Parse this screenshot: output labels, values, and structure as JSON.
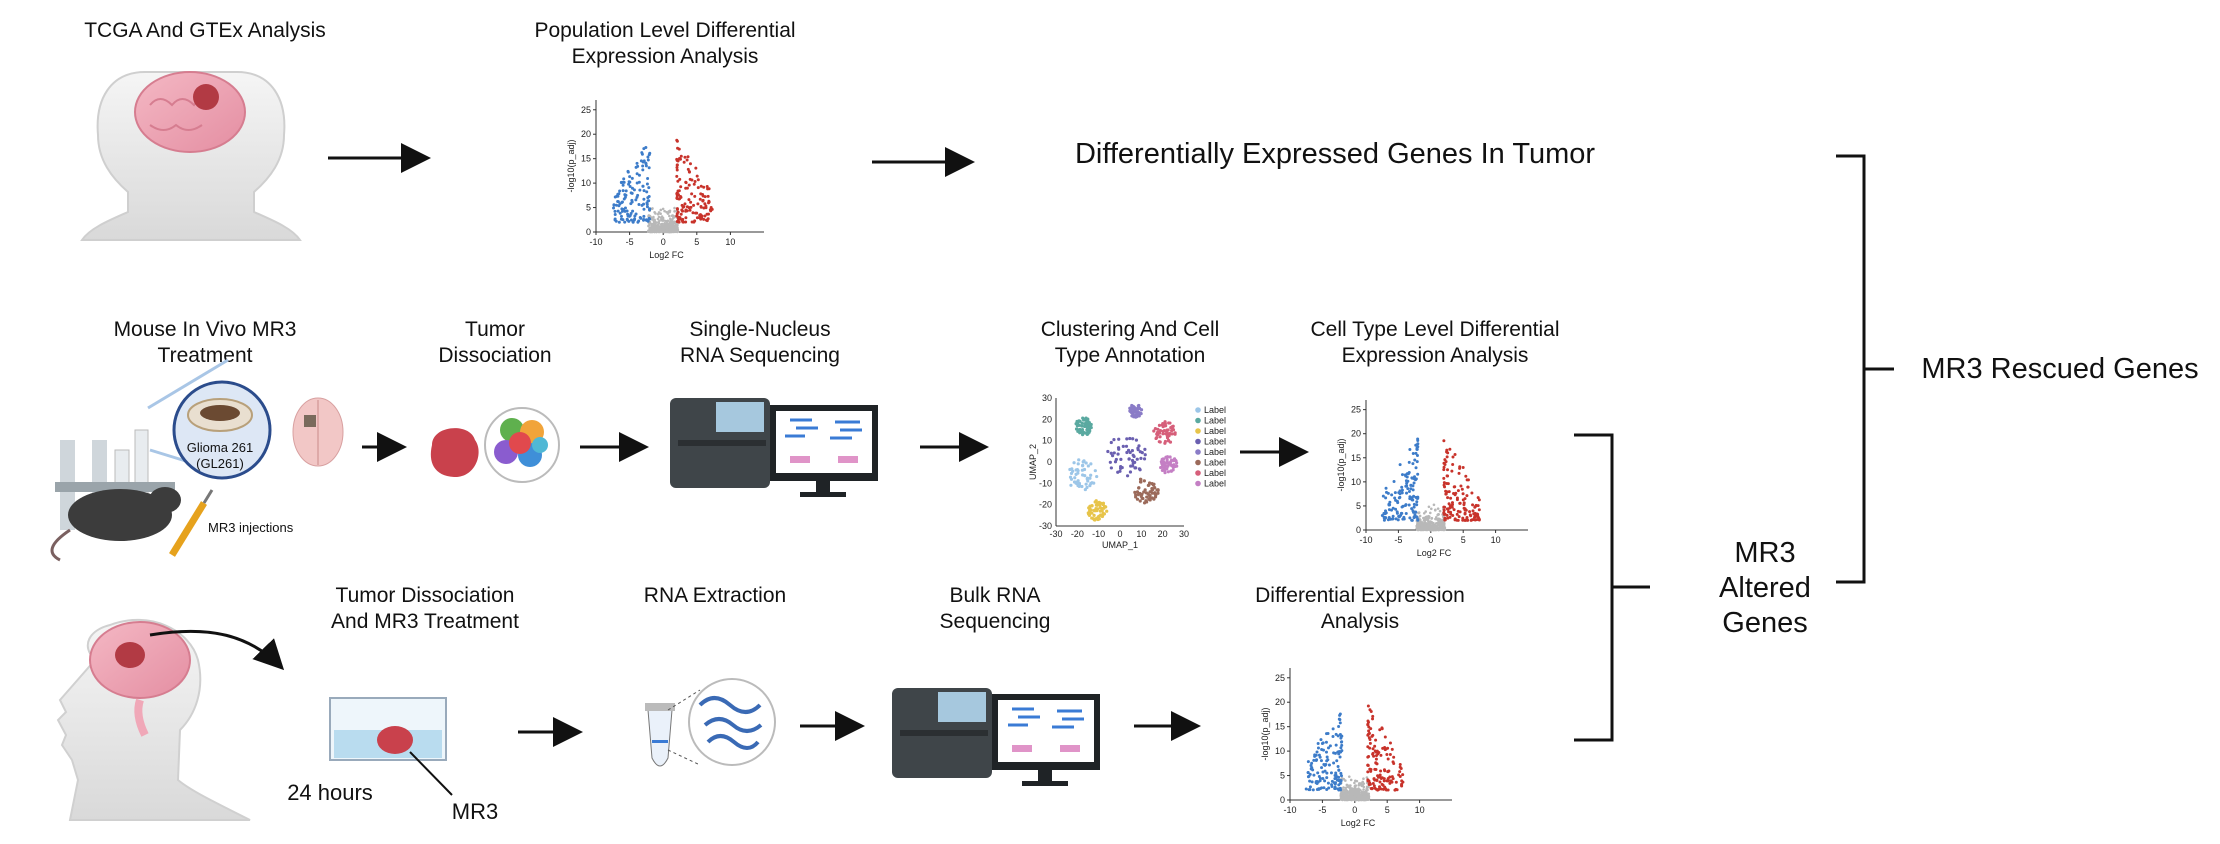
{
  "row1": {
    "source_label": "TCGA And GTEx Analysis",
    "analysis_label": "Population Level Differential\nExpression Analysis",
    "result_label": "Differentially Expressed Genes In Tumor"
  },
  "row2": {
    "treatment_label": "Mouse In Vivo MR3\nTreatment",
    "glioma_label": "Glioma 261\n(GL261)",
    "injection_label": "MR3 injections",
    "dissociation_label": "Tumor\nDissociation",
    "sequencing_label": "Single-Nucleus\nRNA Sequencing",
    "clustering_label": "Clustering And Cell\nType Annotation",
    "analysis_label": "Cell Type Level Differential\nExpression Analysis",
    "umap_xlabel": "UMAP_1",
    "umap_ylabel": "UMAP_2",
    "legend_item": "Label"
  },
  "row3": {
    "dissociation_label": "Tumor Dissociation\nAnd MR3 Treatment",
    "time_label": "24 hours",
    "drug_label": "MR3",
    "extraction_label": "RNA Extraction",
    "sequencing_label": "Bulk RNA\nSequencing",
    "analysis_label": "Differential Expression\nAnalysis"
  },
  "outcomes": {
    "altered_label": "MR3\nAltered\nGenes",
    "rescued_label": "MR3 Rescued Genes"
  },
  "volcano": {
    "xlabel": "Log2 FC",
    "ylabel": "-log10(p_adj)",
    "x_ticks": [
      "-10",
      "-5",
      "0",
      "5",
      "10"
    ],
    "y_ticks": [
      "0",
      "5",
      "10",
      "15",
      "20",
      "25"
    ]
  },
  "colors": {
    "down": "#3d7cc9",
    "up": "#c8332b",
    "ns": "#b8b8b8",
    "cluster_palette": [
      "#9cc6e8",
      "#5aa9a0",
      "#e7c44a",
      "#6a5fb0",
      "#8a7cc7",
      "#9b6a5a",
      "#d65f7a",
      "#c47fc4"
    ]
  }
}
